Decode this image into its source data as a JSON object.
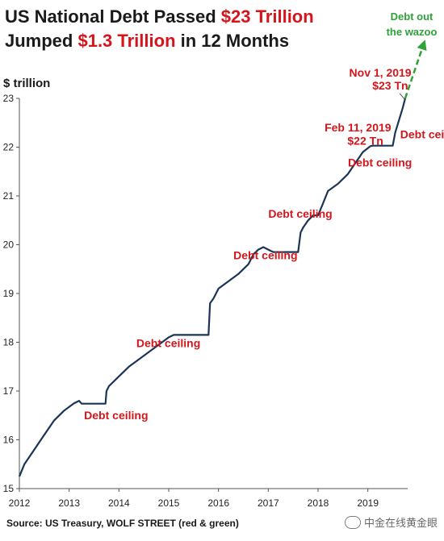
{
  "title": {
    "line1_prefix": "US National Debt Passed ",
    "line1_highlight": "$23 Trillion",
    "line2_prefix": "Jumped ",
    "line2_highlight": "$1.3 Trillion",
    "line2_suffix": " in 12 Months"
  },
  "colors": {
    "line": "#1b3556",
    "red": "#d4161c",
    "green": "#2fa23a",
    "text": "#1a1a1a",
    "axis": "#555555"
  },
  "source": "Source: US Treasury, WOLF STREET (red & green)",
  "watermark": "中金在线黄金眼",
  "chart_data": {
    "type": "line",
    "title": "US National Debt Passed $23 Trillion Jumped $1.3 Trillion in 12 Months",
    "ylabel": "$ trillion",
    "xlabel": "",
    "ylim": [
      15,
      23
    ],
    "xlim": [
      2012.0,
      2019.8
    ],
    "yticks": [
      "15",
      "16",
      "17",
      "18",
      "19",
      "20",
      "21",
      "22",
      "23"
    ],
    "xticks": [
      "2012",
      "2013",
      "2014",
      "2015",
      "2016",
      "2017",
      "2018",
      "2019"
    ],
    "grid": false,
    "legend": "none",
    "series": [
      {
        "x": [
          2012.0,
          2012.1,
          2012.3,
          2012.5,
          2012.7,
          2012.9,
          2013.1,
          2013.2,
          2013.25,
          2013.4,
          2013.73,
          2013.75,
          2013.8,
          2014.0,
          2014.2,
          2014.4,
          2014.6,
          2014.8,
          2015.0,
          2015.1,
          2015.2,
          2015.8,
          2015.83,
          2015.9,
          2016.0,
          2016.2,
          2016.4,
          2016.6,
          2016.7,
          2016.8,
          2016.9,
          2017.0,
          2017.1,
          2017.2,
          2017.6,
          2017.65,
          2017.7,
          2017.8,
          2017.9,
          2018.0,
          2018.1,
          2018.2,
          2018.4,
          2018.6,
          2018.8,
          2018.9,
          2019.0,
          2019.05,
          2019.1,
          2019.5,
          2019.55,
          2019.7,
          2019.75
        ],
        "y": [
          15.25,
          15.5,
          15.8,
          16.1,
          16.4,
          16.6,
          16.75,
          16.8,
          16.74,
          16.74,
          16.74,
          17.0,
          17.1,
          17.3,
          17.5,
          17.65,
          17.8,
          17.95,
          18.1,
          18.15,
          18.15,
          18.15,
          18.8,
          18.9,
          19.1,
          19.25,
          19.4,
          19.6,
          19.8,
          19.9,
          19.95,
          19.9,
          19.85,
          19.85,
          19.85,
          20.25,
          20.35,
          20.5,
          20.6,
          20.6,
          20.85,
          21.1,
          21.25,
          21.45,
          21.75,
          21.9,
          21.98,
          22.02,
          22.03,
          22.03,
          22.3,
          22.8,
          23.0
        ]
      }
    ],
    "annotations": {
      "ceilings": [
        "Debt ceiling",
        "Debt ceiling",
        "Debt ceiling",
        "Debt ceiling",
        "Debt ceiling",
        "Debt ceiling"
      ],
      "feb_date": "Feb 11, 2019",
      "feb_value": "$22 Tn",
      "nov_date": "Nov 1, 2019",
      "nov_value": "$23 Tn",
      "green_line1": "Debt out",
      "green_line2": "the wazoo"
    }
  }
}
